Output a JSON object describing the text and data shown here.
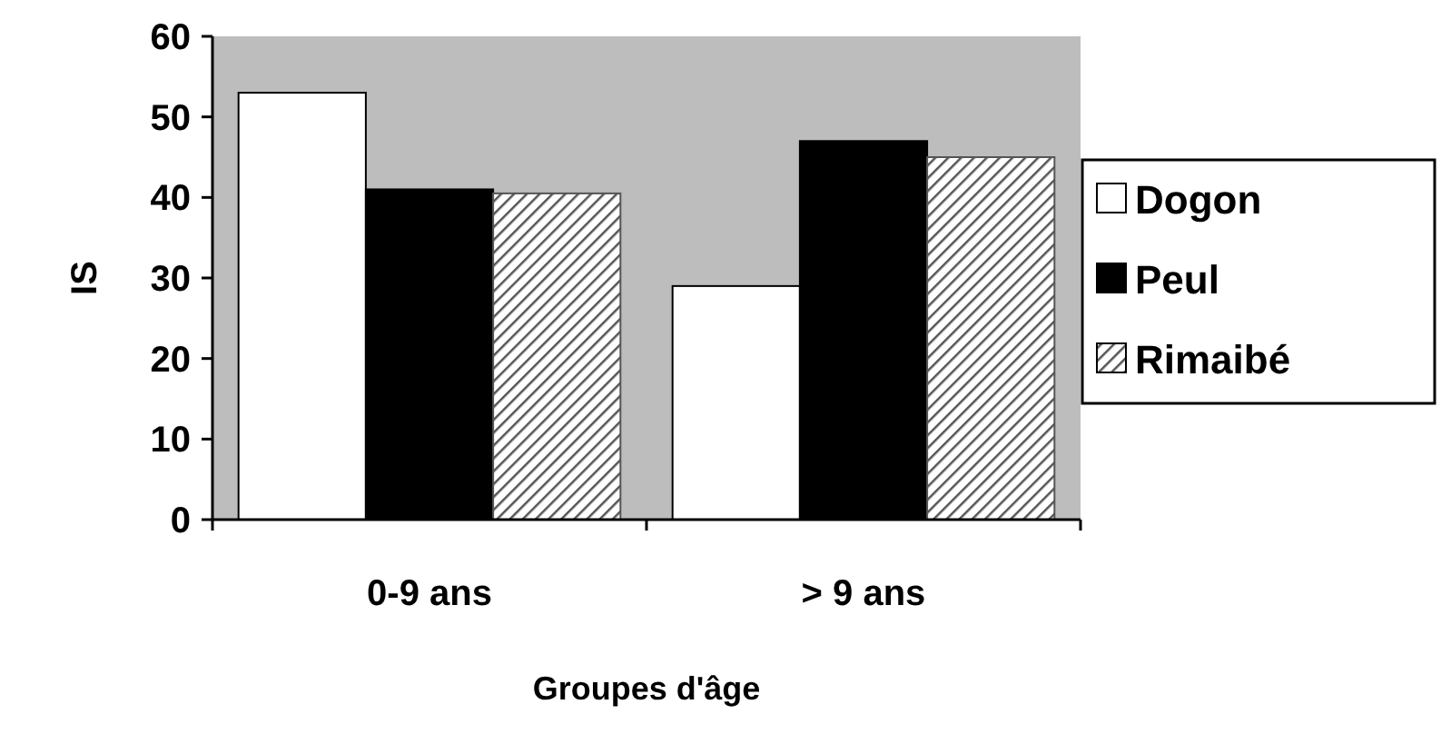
{
  "chart_data": {
    "type": "bar",
    "xlabel": "Groupes d'âge",
    "ylabel": "IS",
    "categories": [
      "0-9 ans",
      "> 9 ans"
    ],
    "series": [
      {
        "name": "Dogon",
        "color": "#ffffff",
        "values": [
          53,
          29
        ]
      },
      {
        "name": "Peul",
        "color": "#000000",
        "values": [
          41,
          47
        ]
      },
      {
        "name": "Rimaibé",
        "color": "#555555",
        "values": [
          40.5,
          45
        ]
      }
    ],
    "ylim": [
      0,
      60
    ],
    "yticks": [
      0,
      10,
      20,
      30,
      40,
      50,
      60
    ],
    "grid": false,
    "legend": "right"
  }
}
